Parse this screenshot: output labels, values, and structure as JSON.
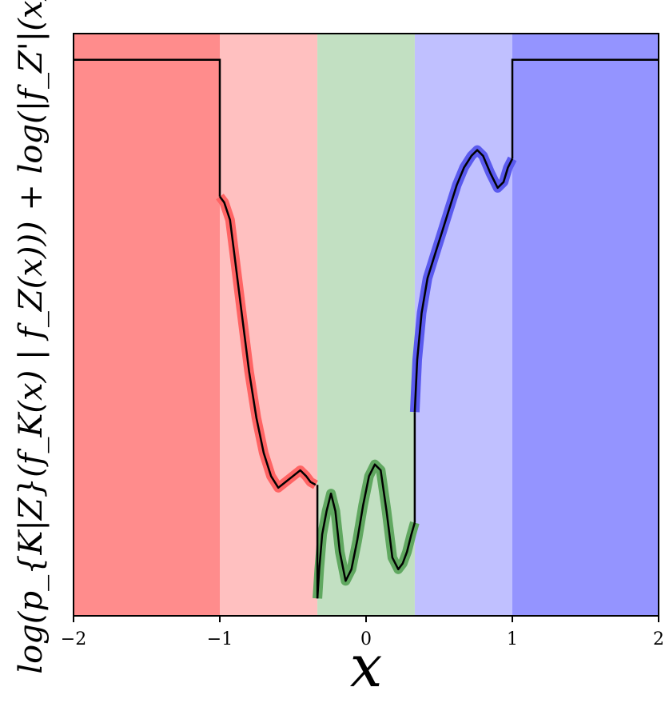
{
  "chart_data": {
    "type": "line",
    "title": "",
    "xlabel": "x",
    "ylabel": "log(p_{K|Z}(f_K(x) | f_Z(x))) + log(|f_Z'|(x))",
    "xlim": [
      -2,
      2
    ],
    "ylim": [
      0,
      1
    ],
    "y_ticks_shown": false,
    "grid": false,
    "x_ticks": [
      {
        "value": -2,
        "label": "−2"
      },
      {
        "value": -1,
        "label": "−1"
      },
      {
        "value": 0,
        "label": "0"
      },
      {
        "value": 1,
        "label": "1"
      },
      {
        "value": 2,
        "label": "2"
      }
    ],
    "regions": [
      {
        "x0": -2,
        "x1": -1,
        "color": "#ff8c8c"
      },
      {
        "x0": -1,
        "x1": -0.333,
        "color": "#ffc0c0"
      },
      {
        "x0": -0.333,
        "x1": 0.333,
        "color": "#c2e0c2"
      },
      {
        "x0": 0.333,
        "x1": 1,
        "color": "#c0c0ff"
      },
      {
        "x0": 1,
        "x1": 2,
        "color": "#9494ff"
      }
    ],
    "flat_level": 0.955,
    "series": [
      {
        "color": "#ff6464",
        "points": [
          [
            -1.0,
            0.72
          ],
          [
            -0.97,
            0.71
          ],
          [
            -0.93,
            0.68
          ],
          [
            -0.9,
            0.62
          ],
          [
            -0.85,
            0.52
          ],
          [
            -0.8,
            0.42
          ],
          [
            -0.75,
            0.34
          ],
          [
            -0.7,
            0.28
          ],
          [
            -0.65,
            0.24
          ],
          [
            -0.6,
            0.22
          ],
          [
            -0.55,
            0.23
          ],
          [
            -0.5,
            0.24
          ],
          [
            -0.45,
            0.25
          ],
          [
            -0.41,
            0.24
          ],
          [
            -0.38,
            0.23
          ],
          [
            -0.345,
            0.225
          ]
        ]
      },
      {
        "color": "#60a860",
        "points": [
          [
            -0.333,
            0.03
          ],
          [
            -0.32,
            0.08
          ],
          [
            -0.3,
            0.14
          ],
          [
            -0.27,
            0.18
          ],
          [
            -0.24,
            0.21
          ],
          [
            -0.21,
            0.18
          ],
          [
            -0.18,
            0.11
          ],
          [
            -0.14,
            0.06
          ],
          [
            -0.1,
            0.08
          ],
          [
            -0.06,
            0.13
          ],
          [
            -0.02,
            0.19
          ],
          [
            0.02,
            0.24
          ],
          [
            0.06,
            0.26
          ],
          [
            0.1,
            0.25
          ],
          [
            0.14,
            0.18
          ],
          [
            0.18,
            0.1
          ],
          [
            0.22,
            0.08
          ],
          [
            0.25,
            0.09
          ],
          [
            0.28,
            0.11
          ],
          [
            0.31,
            0.14
          ],
          [
            0.333,
            0.16
          ]
        ]
      },
      {
        "color": "#5a5aee",
        "points": [
          [
            0.333,
            0.35
          ],
          [
            0.35,
            0.44
          ],
          [
            0.38,
            0.52
          ],
          [
            0.42,
            0.58
          ],
          [
            0.47,
            0.62
          ],
          [
            0.52,
            0.66
          ],
          [
            0.57,
            0.7
          ],
          [
            0.62,
            0.74
          ],
          [
            0.67,
            0.77
          ],
          [
            0.72,
            0.79
          ],
          [
            0.76,
            0.8
          ],
          [
            0.8,
            0.79
          ],
          [
            0.85,
            0.76
          ],
          [
            0.9,
            0.735
          ],
          [
            0.94,
            0.745
          ],
          [
            0.97,
            0.77
          ],
          [
            1.0,
            0.785
          ]
        ]
      }
    ],
    "black_steps": [
      [
        [
          -2,
          0.955
        ],
        [
          -1,
          0.955
        ],
        [
          -1,
          0.72
        ]
      ],
      [
        [
          -0.333,
          0.225
        ],
        [
          -0.333,
          0.03
        ]
      ],
      [
        [
          0.333,
          0.16
        ],
        [
          0.333,
          0.35
        ]
      ],
      [
        [
          1,
          0.785
        ],
        [
          1,
          0.955
        ],
        [
          2,
          0.955
        ]
      ]
    ]
  }
}
